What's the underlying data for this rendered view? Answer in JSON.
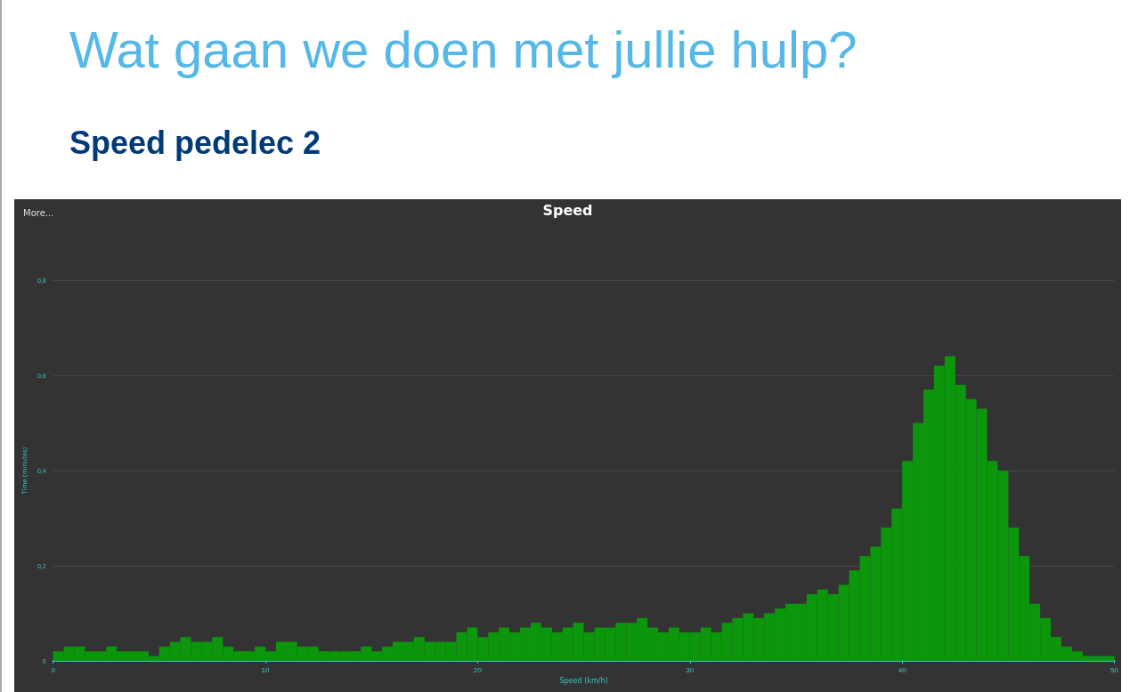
{
  "chart_data": {
    "type": "histogram",
    "title": "Wat gaan we doen met jullie hulp?",
    "subtitle": "Speed pedelec 2",
    "annotations": [
      "Speed",
      "More..."
    ],
    "xlabel": "Speed (km/h)",
    "ylabel": "Time (minutes)",
    "color": "#0c960c",
    "bins": [
      0,
      0.5,
      1,
      1.5,
      2,
      2.5,
      3,
      3.5,
      4,
      4.5,
      5,
      5.5,
      6,
      6.5,
      7,
      7.5,
      8,
      8.5,
      9,
      9.5,
      10,
      10.5,
      11,
      11.5,
      12,
      12.5,
      13,
      13.5,
      14,
      14.5,
      15,
      15.5,
      16,
      16.5,
      17,
      17.5,
      18,
      18.5,
      19,
      19.5,
      20,
      20.5,
      21,
      21.5,
      22,
      22.5,
      23,
      23.5,
      24,
      24.5,
      25,
      25.5,
      26,
      26.5,
      27,
      27.5,
      28,
      28.5,
      29,
      29.5,
      30,
      30.5,
      31,
      31.5,
      32,
      32.5,
      33,
      33.5,
      34,
      34.5,
      35,
      35.5,
      36,
      36.5,
      37,
      37.5,
      38,
      38.5,
      39,
      39.5,
      40,
      40.5,
      41,
      41.5,
      42,
      42.5,
      43,
      43.5,
      44,
      44.5,
      45,
      45.5,
      46,
      46.5,
      47,
      47.5,
      48,
      48.5,
      49,
      49.5,
      50
    ],
    "values": [
      0.02,
      0.03,
      0.03,
      0.02,
      0.02,
      0.03,
      0.02,
      0.02,
      0.02,
      0.01,
      0.03,
      0.04,
      0.05,
      0.04,
      0.04,
      0.05,
      0.03,
      0.02,
      0.02,
      0.03,
      0.02,
      0.04,
      0.04,
      0.03,
      0.03,
      0.02,
      0.02,
      0.02,
      0.02,
      0.03,
      0.02,
      0.03,
      0.04,
      0.04,
      0.05,
      0.04,
      0.04,
      0.04,
      0.06,
      0.07,
      0.05,
      0.06,
      0.07,
      0.06,
      0.07,
      0.08,
      0.07,
      0.06,
      0.07,
      0.08,
      0.06,
      0.07,
      0.07,
      0.08,
      0.08,
      0.09,
      0.07,
      0.06,
      0.07,
      0.06,
      0.06,
      0.07,
      0.06,
      0.08,
      0.09,
      0.1,
      0.09,
      0.1,
      0.11,
      0.12,
      0.12,
      0.14,
      0.15,
      0.14,
      0.16,
      0.19,
      0.22,
      0.24,
      0.28,
      0.32,
      0.42,
      0.5,
      0.57,
      0.62,
      0.64,
      0.58,
      0.55,
      0.53,
      0.42,
      0.4,
      0.28,
      0.22,
      0.12,
      0.09,
      0.05,
      0.03,
      0.02,
      0.01,
      0.01,
      0.01
    ],
    "xlim": [
      0,
      50
    ],
    "xticks": [
      0,
      10,
      20,
      30,
      40,
      50
    ],
    "ylim": [
      0,
      0.8
    ],
    "yticks": [
      0,
      {
        "value": 0.2,
        "label": "0,2"
      },
      {
        "value": 0.4,
        "label": "0,4"
      },
      {
        "value": 0.6,
        "label": "0,6"
      },
      {
        "value": 0.8,
        "label": "0,8"
      }
    ],
    "grid": "y"
  }
}
